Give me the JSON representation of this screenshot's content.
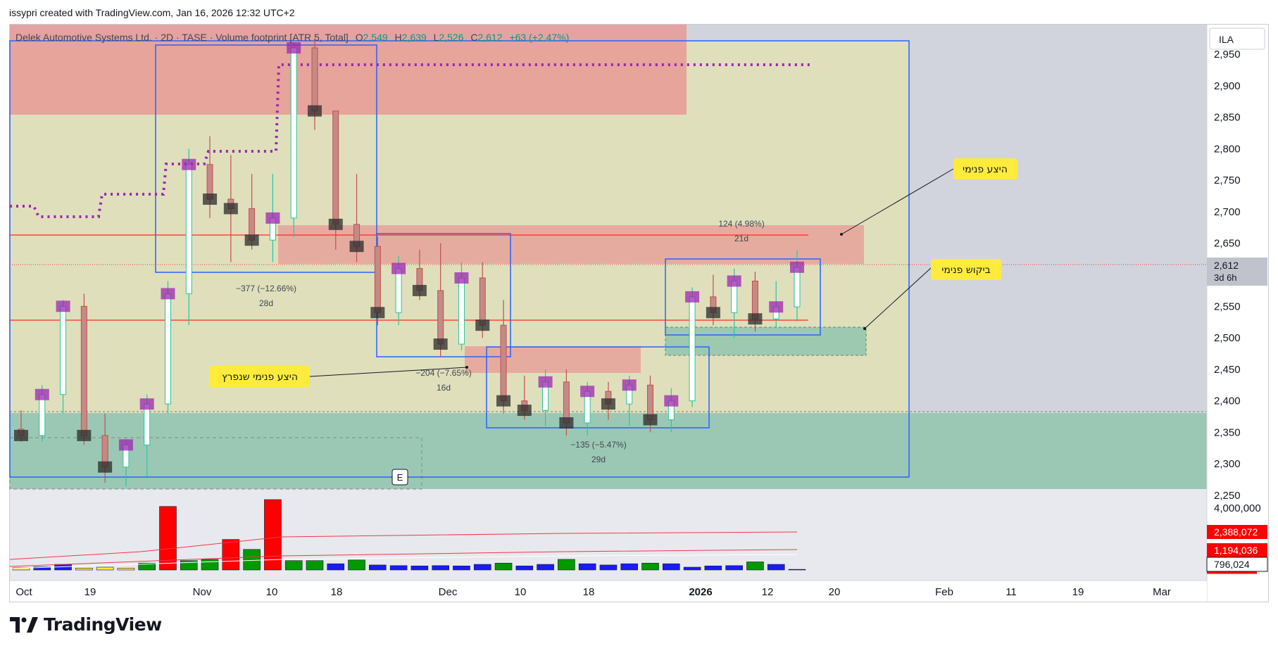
{
  "header": {
    "text": "issypri created with TradingView.com, Jan 16, 2026 12:32 UTC+2"
  },
  "legend": {
    "symbol": "Delek Automotive Systems Ltd. · 2D · TASE · Volume footprint [ATR 5, Total]",
    "o_label": "O",
    "o_value": "2,549",
    "h_label": "H",
    "h_value": "2,639",
    "l_label": "L",
    "l_value": "2,526",
    "c_label": "C",
    "c_value": "2,612",
    "change": "+63 (+2.47%)"
  },
  "currency_button": "ILA",
  "price_tag": {
    "value": "2,612",
    "countdown": "3d 6h"
  },
  "volume_tags": [
    "2,388,072",
    "1,194,036",
    "796,024"
  ],
  "brand": {
    "name": "TradingView"
  },
  "event_marker": "E",
  "callouts": [
    {
      "id": "top",
      "text": "היצע פנימי"
    },
    {
      "id": "mid",
      "text": "ביקוש פנימי"
    },
    {
      "id": "left",
      "text": "היצע פנימי שנפרץ"
    }
  ],
  "measures": [
    {
      "id": "m1",
      "change": "−377 (−12.66%)",
      "duration": "28d"
    },
    {
      "id": "m2",
      "change": "−204 (−7.65%)",
      "duration": "16d"
    },
    {
      "id": "m3",
      "change": "−135 (−5.47%)",
      "duration": "29d"
    },
    {
      "id": "m4",
      "change": "124 (4.98%)",
      "duration": "21d"
    }
  ],
  "chart_data": {
    "type": "candlestick",
    "price_axis": {
      "min": 2250,
      "max": 2975,
      "ticks": [
        2250,
        2300,
        2350,
        2400,
        2450,
        2500,
        2550,
        2600,
        2650,
        2700,
        2750,
        2800,
        2850,
        2900,
        2950
      ],
      "tick_labels": [
        "2,250",
        "2,300",
        "2,350",
        "2,400",
        "2,450",
        "2,500",
        "2,550",
        "2,600",
        "2,650",
        "2,700",
        "2,750",
        "2,800",
        "2,850",
        "2,900",
        "2,950"
      ]
    },
    "volume_axis": {
      "ticks": [
        4000000
      ],
      "tick_labels": [
        "4,000,000"
      ]
    },
    "time_axis": {
      "labels": [
        "Oct",
        "19",
        "Nov",
        "10",
        "18",
        "Dec",
        "10",
        "18",
        "2026",
        "12",
        "20",
        "Feb",
        "11",
        "19",
        "Mar"
      ]
    },
    "candles": [
      {
        "o": 2355,
        "h": 2385,
        "l": 2335,
        "c": 2345,
        "v": 350000
      },
      {
        "o": 2345,
        "h": 2425,
        "l": 2335,
        "c": 2410,
        "v": 500000
      },
      {
        "o": 2410,
        "h": 2560,
        "l": 2380,
        "c": 2550,
        "v": 900000
      },
      {
        "o": 2550,
        "h": 2570,
        "l": 2330,
        "c": 2345,
        "v": 300000
      },
      {
        "o": 2345,
        "h": 2380,
        "l": 2270,
        "c": 2295,
        "v": 450000
      },
      {
        "o": 2295,
        "h": 2340,
        "l": 2265,
        "c": 2330,
        "v": 280000
      },
      {
        "o": 2330,
        "h": 2410,
        "l": 2280,
        "c": 2395,
        "v": 1100000
      },
      {
        "o": 2395,
        "h": 2590,
        "l": 2380,
        "c": 2570,
        "v": 10200000
      },
      {
        "o": 2570,
        "h": 2800,
        "l": 2520,
        "c": 2775,
        "v": 1500000
      },
      {
        "o": 2775,
        "h": 2820,
        "l": 2690,
        "c": 2720,
        "v": 1700000
      },
      {
        "o": 2720,
        "h": 2790,
        "l": 2620,
        "c": 2705,
        "v": 4900000
      },
      {
        "o": 2705,
        "h": 2760,
        "l": 2640,
        "c": 2655,
        "v": 3300000
      },
      {
        "o": 2655,
        "h": 2760,
        "l": 2620,
        "c": 2690,
        "v": 11300000
      },
      {
        "o": 2690,
        "h": 2975,
        "l": 2660,
        "c": 2960,
        "v": 1500000
      },
      {
        "o": 2960,
        "h": 2975,
        "l": 2830,
        "c": 2860,
        "v": 1500000
      },
      {
        "o": 2860,
        "h": 2860,
        "l": 2640,
        "c": 2680,
        "v": 1000000
      },
      {
        "o": 2680,
        "h": 2760,
        "l": 2620,
        "c": 2645,
        "v": 1600000
      },
      {
        "o": 2645,
        "h": 2660,
        "l": 2520,
        "c": 2540,
        "v": 800000
      },
      {
        "o": 2540,
        "h": 2630,
        "l": 2520,
        "c": 2610,
        "v": 700000
      },
      {
        "o": 2610,
        "h": 2640,
        "l": 2560,
        "c": 2575,
        "v": 650000
      },
      {
        "o": 2575,
        "h": 2650,
        "l": 2470,
        "c": 2490,
        "v": 700000
      },
      {
        "o": 2490,
        "h": 2620,
        "l": 2480,
        "c": 2595,
        "v": 650000
      },
      {
        "o": 2595,
        "h": 2620,
        "l": 2500,
        "c": 2520,
        "v": 900000
      },
      {
        "o": 2520,
        "h": 2560,
        "l": 2380,
        "c": 2400,
        "v": 1100000
      },
      {
        "o": 2400,
        "h": 2440,
        "l": 2370,
        "c": 2385,
        "v": 650000
      },
      {
        "o": 2385,
        "h": 2450,
        "l": 2360,
        "c": 2430,
        "v": 900000
      },
      {
        "o": 2430,
        "h": 2450,
        "l": 2345,
        "c": 2365,
        "v": 1700000
      },
      {
        "o": 2365,
        "h": 2430,
        "l": 2345,
        "c": 2415,
        "v": 1000000
      },
      {
        "o": 2415,
        "h": 2430,
        "l": 2370,
        "c": 2395,
        "v": 800000
      },
      {
        "o": 2395,
        "h": 2440,
        "l": 2360,
        "c": 2425,
        "v": 1000000
      },
      {
        "o": 2425,
        "h": 2440,
        "l": 2350,
        "c": 2370,
        "v": 1100000
      },
      {
        "o": 2370,
        "h": 2420,
        "l": 2350,
        "c": 2400,
        "v": 1000000
      },
      {
        "o": 2400,
        "h": 2580,
        "l": 2390,
        "c": 2565,
        "v": 450000
      },
      {
        "o": 2565,
        "h": 2600,
        "l": 2520,
        "c": 2540,
        "v": 650000
      },
      {
        "o": 2540,
        "h": 2610,
        "l": 2500,
        "c": 2590,
        "v": 700000
      },
      {
        "o": 2590,
        "h": 2605,
        "l": 2510,
        "c": 2530,
        "v": 1300000
      },
      {
        "o": 2530,
        "h": 2590,
        "l": 2515,
        "c": 2549,
        "v": 900000
      },
      {
        "o": 2549,
        "h": 2639,
        "l": 2526,
        "c": 2612,
        "v": 100000
      }
    ]
  }
}
